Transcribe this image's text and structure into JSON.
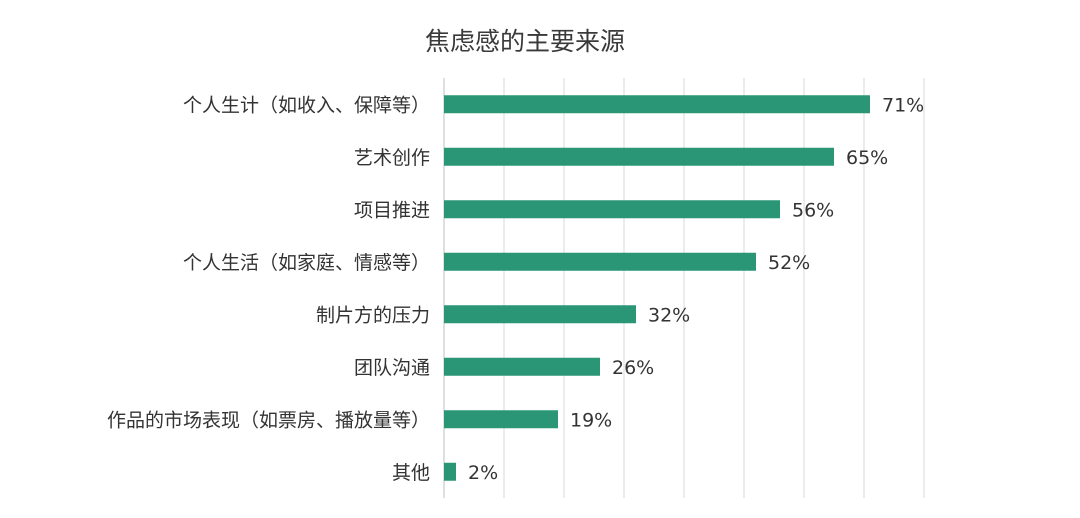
{
  "chart_data": {
    "type": "bar",
    "orientation": "horizontal",
    "title": "焦虑感的主要来源",
    "categories": [
      "个人生计（如收入、保障等）",
      "艺术创作",
      "项目推进",
      "个人生活（如家庭、情感等）",
      "制片方的压力",
      "团队沟通",
      "作品的市场表现（如票房、播放量等）",
      "其他"
    ],
    "values": [
      71,
      65,
      56,
      52,
      32,
      26,
      19,
      2
    ],
    "value_labels": [
      "71%",
      "65%",
      "56%",
      "52%",
      "32%",
      "26%",
      "19%",
      "2%"
    ],
    "unit": "%",
    "xlim": [
      0,
      80
    ],
    "grid": true,
    "bar_color": "#2a9676"
  }
}
